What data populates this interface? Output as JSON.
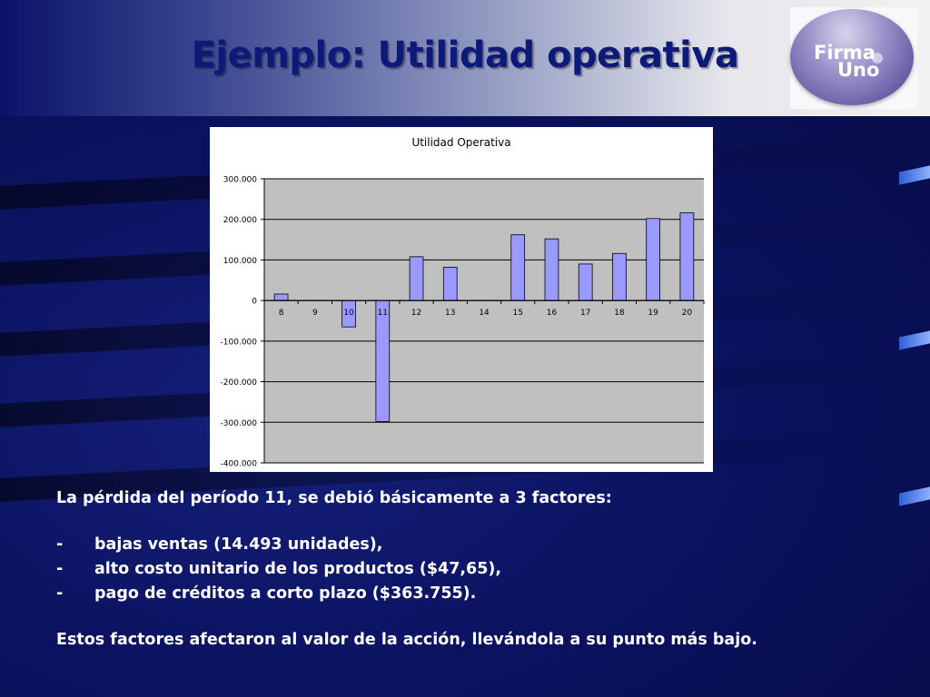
{
  "slide": {
    "title": "Ejemplo: Utilidad operativa",
    "logo": {
      "line1": "Firma",
      "line2": "Uno"
    }
  },
  "body": {
    "intro": "La pérdida del período 11, se debió básicamente a 3 factores:",
    "bullets": [
      {
        "marker": "-",
        "text": "bajas ventas (14.493 unidades),"
      },
      {
        "marker": "-",
        "text": "alto costo unitario de los productos ($47,65),"
      },
      {
        "marker": "-",
        "text": "pago de créditos a corto plazo ($363.755)."
      }
    ],
    "conclusion": "Estos factores afectaron al valor de la acción, llevándola a su punto más bajo."
  },
  "chart_data": {
    "type": "bar",
    "title": "Utilidad Operativa",
    "xlabel": "",
    "ylabel": "",
    "categories": [
      "8",
      "9",
      "10",
      "11",
      "12",
      "13",
      "14",
      "15",
      "16",
      "17",
      "18",
      "19",
      "20"
    ],
    "values": [
      16000,
      0,
      -65000,
      -298000,
      108000,
      82000,
      0,
      162000,
      152000,
      90000,
      116000,
      202000,
      216000
    ],
    "ylim": [
      -400000,
      300000
    ],
    "yticks": [
      300000,
      200000,
      100000,
      0,
      -100000,
      -200000,
      -300000,
      -400000
    ],
    "ytick_labels": [
      "300.000",
      "200.000",
      "100.000",
      "0",
      "-100.000",
      "-200.000",
      "-300.000",
      "-400.000"
    ],
    "grid": true,
    "legend": "none",
    "colors": {
      "bar": "#9999ff",
      "plot_bg": "#c0c0c0",
      "bar_border": "#000000"
    }
  }
}
